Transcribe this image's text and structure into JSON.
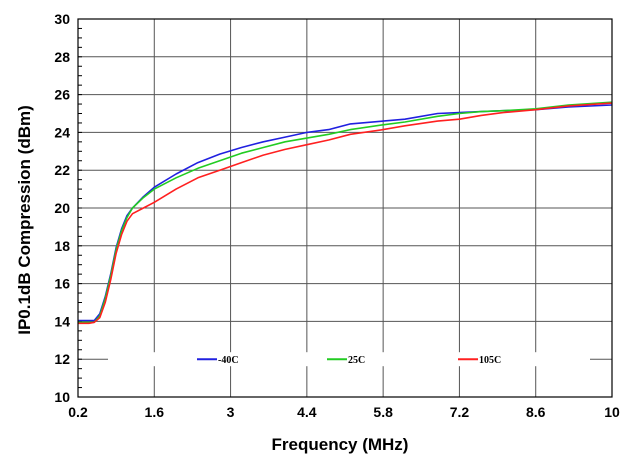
{
  "chart_data": {
    "type": "line",
    "title": "",
    "xlabel": "Frequency (MHz)",
    "ylabel": "IP0.1dB Compression (dBm)",
    "xlim": [
      0.2,
      10
    ],
    "ylim": [
      10,
      30
    ],
    "xticks": [
      "0.2",
      "1.6",
      "3",
      "4.4",
      "5.8",
      "7.2",
      "8.6",
      "10"
    ],
    "yticks": [
      "10",
      "12",
      "14",
      "16",
      "18",
      "20",
      "22",
      "24",
      "26",
      "28",
      "30"
    ],
    "grid": true,
    "legend_position": "bottom-inside",
    "series": [
      {
        "name": "-40C",
        "color": "#2020e0",
        "points": [
          [
            0.2,
            14.05
          ],
          [
            0.4,
            14.05
          ],
          [
            0.5,
            14.05
          ],
          [
            0.6,
            14.4
          ],
          [
            0.7,
            15.3
          ],
          [
            0.8,
            16.5
          ],
          [
            0.9,
            17.9
          ],
          [
            1.0,
            18.9
          ],
          [
            1.1,
            19.6
          ],
          [
            1.2,
            20.0
          ],
          [
            1.4,
            20.6
          ],
          [
            1.6,
            21.1
          ],
          [
            2.0,
            21.8
          ],
          [
            2.4,
            22.4
          ],
          [
            2.8,
            22.85
          ],
          [
            3.2,
            23.2
          ],
          [
            3.6,
            23.5
          ],
          [
            4.0,
            23.75
          ],
          [
            4.4,
            24.0
          ],
          [
            4.8,
            24.15
          ],
          [
            5.2,
            24.45
          ],
          [
            5.8,
            24.6
          ],
          [
            6.2,
            24.7
          ],
          [
            6.8,
            25.0
          ],
          [
            7.2,
            25.05
          ],
          [
            7.6,
            25.1
          ],
          [
            8.0,
            25.15
          ],
          [
            8.6,
            25.2
          ],
          [
            9.2,
            25.35
          ],
          [
            10,
            25.45
          ]
        ]
      },
      {
        "name": "25C",
        "color": "#22cc22",
        "points": [
          [
            0.2,
            13.95
          ],
          [
            0.4,
            13.95
          ],
          [
            0.5,
            13.95
          ],
          [
            0.6,
            14.3
          ],
          [
            0.7,
            15.2
          ],
          [
            0.8,
            16.4
          ],
          [
            0.9,
            17.8
          ],
          [
            1.0,
            18.8
          ],
          [
            1.1,
            19.5
          ],
          [
            1.2,
            20.0
          ],
          [
            1.4,
            20.55
          ],
          [
            1.6,
            21.0
          ],
          [
            2.0,
            21.6
          ],
          [
            2.4,
            22.1
          ],
          [
            2.8,
            22.5
          ],
          [
            3.2,
            22.9
          ],
          [
            3.6,
            23.2
          ],
          [
            4.0,
            23.5
          ],
          [
            4.4,
            23.7
          ],
          [
            4.8,
            23.9
          ],
          [
            5.2,
            24.15
          ],
          [
            5.8,
            24.4
          ],
          [
            6.2,
            24.55
          ],
          [
            6.8,
            24.85
          ],
          [
            7.2,
            25.0
          ],
          [
            7.6,
            25.1
          ],
          [
            8.0,
            25.15
          ],
          [
            8.6,
            25.25
          ],
          [
            9.2,
            25.45
          ],
          [
            10,
            25.6
          ]
        ]
      },
      {
        "name": "105C",
        "color": "#ff2020",
        "points": [
          [
            0.2,
            13.9
          ],
          [
            0.4,
            13.9
          ],
          [
            0.5,
            13.95
          ],
          [
            0.6,
            14.2
          ],
          [
            0.7,
            15.0
          ],
          [
            0.8,
            16.2
          ],
          [
            0.9,
            17.6
          ],
          [
            1.0,
            18.6
          ],
          [
            1.1,
            19.3
          ],
          [
            1.2,
            19.7
          ],
          [
            1.4,
            20.0
          ],
          [
            1.6,
            20.3
          ],
          [
            2.0,
            21.0
          ],
          [
            2.4,
            21.6
          ],
          [
            2.8,
            22.0
          ],
          [
            3.2,
            22.4
          ],
          [
            3.6,
            22.8
          ],
          [
            4.0,
            23.1
          ],
          [
            4.4,
            23.35
          ],
          [
            4.8,
            23.6
          ],
          [
            5.2,
            23.9
          ],
          [
            5.8,
            24.15
          ],
          [
            6.2,
            24.35
          ],
          [
            6.8,
            24.6
          ],
          [
            7.2,
            24.7
          ],
          [
            7.6,
            24.9
          ],
          [
            8.0,
            25.05
          ],
          [
            8.6,
            25.2
          ],
          [
            9.2,
            25.4
          ],
          [
            10,
            25.55
          ]
        ]
      }
    ]
  }
}
